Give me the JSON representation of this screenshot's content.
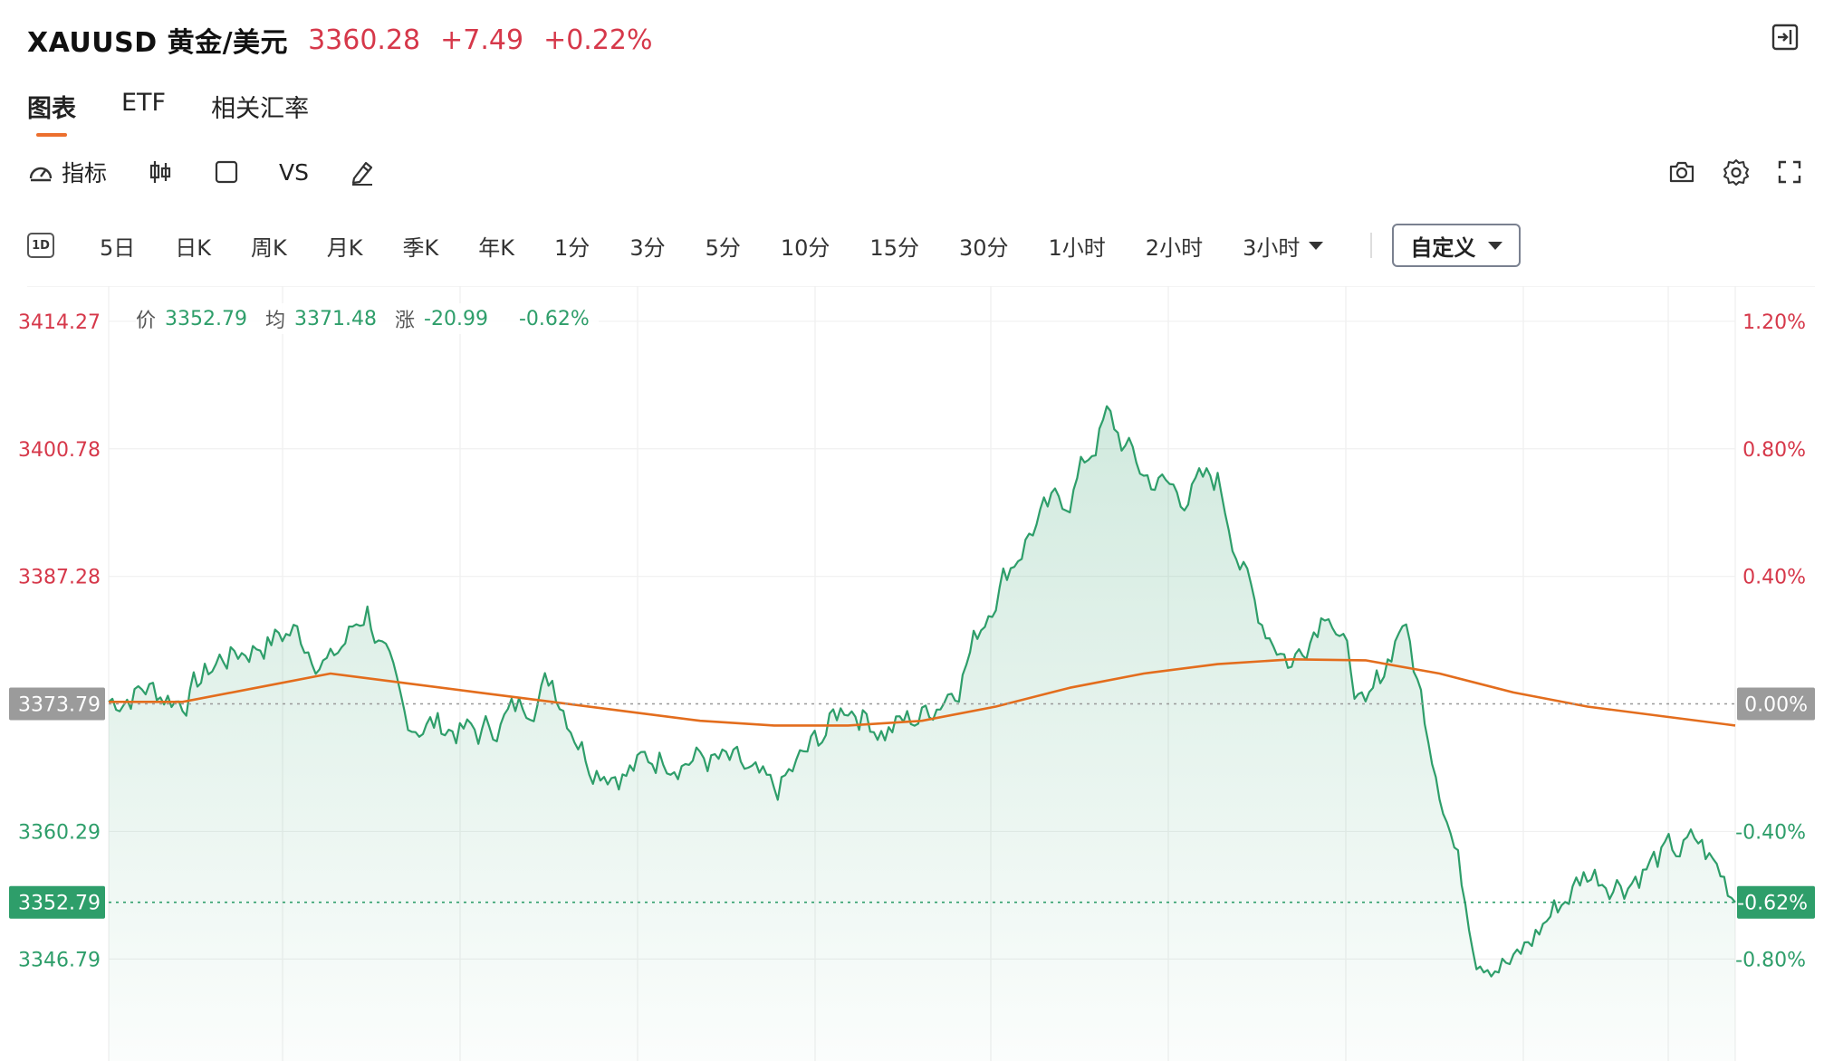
{
  "header": {
    "symbol": "XAUUSD 黄金/美元",
    "price": "3360.28",
    "change": "+7.49",
    "change_pct": "+0.22%"
  },
  "tabs": [
    {
      "label": "图表",
      "active": true
    },
    {
      "label": "ETF",
      "active": false
    },
    {
      "label": "相关汇率",
      "active": false
    }
  ],
  "toolbar": {
    "indicator_label": "指标",
    "vs_label": "VS"
  },
  "periods": {
    "first_icon_label": "1D",
    "items": [
      "5日",
      "日K",
      "周K",
      "月K",
      "季K",
      "年K",
      "1分",
      "3分",
      "5分",
      "10分",
      "15分",
      "30分",
      "1小时",
      "2小时"
    ],
    "more_label": "3小时",
    "custom_label": "自定义"
  },
  "info": {
    "price_key": "价",
    "price_val": "3352.79",
    "avg_key": "均",
    "avg_val": "3371.48",
    "chg_key": "涨",
    "chg_val": "-20.99",
    "pct_val": "-0.62%"
  },
  "colors": {
    "up": "#d6384a",
    "down": "#2e9e6a",
    "avg_line": "#e36d1d",
    "ref_label_bg": "#9b9b9b",
    "cur_label_bg": "#2e9e6a"
  },
  "chart_data": {
    "type": "area",
    "prev_close": 3373.79,
    "current": 3352.79,
    "ylim": [
      3336.0,
      3418.0
    ],
    "y_ticks": [
      3414.27,
      3400.78,
      3387.28,
      3360.29,
      3346.79
    ],
    "y_ticks_pct": [
      "1.20%",
      "0.80%",
      "0.40%",
      "-0.40%",
      "-0.80%"
    ],
    "ref_label": "3373.79",
    "ref_pct": "0.00%",
    "cur_label": "3352.79",
    "cur_pct": "-0.62%",
    "points_total": 440,
    "price_series": {
      "x": [
        0,
        10,
        20,
        30,
        40,
        50,
        60,
        70,
        80,
        90,
        100,
        110,
        120,
        130,
        140,
        150,
        160,
        170,
        180,
        190,
        200,
        210,
        220,
        230,
        240,
        250,
        260,
        270,
        280,
        290,
        300,
        310,
        320,
        330,
        340,
        350,
        360,
        370,
        380,
        390,
        400,
        410,
        420,
        430,
        440
      ],
      "y": [
        3374.0,
        3375.5,
        3374.2,
        3378.5,
        3380.0,
        3381.5,
        3378.0,
        3384.0,
        3372.0,
        3371.5,
        3370.5,
        3373.0,
        3376.5,
        3368.0,
        3366.5,
        3368.5,
        3368.0,
        3367.0,
        3364.0,
        3369.0,
        3374.0,
        3371.0,
        3372.5,
        3376.5,
        3386.0,
        3392.5,
        3396.0,
        3404.0,
        3398.0,
        3396.0,
        3397.5,
        3384.0,
        3378.0,
        3385.0,
        3372.0,
        3383.0,
        3366.0,
        3348.0,
        3346.0,
        3351.5,
        3356.0,
        3355.0,
        3357.5,
        3359.0,
        3353.5
      ]
    },
    "avg_series": {
      "x": [
        0,
        20,
        40,
        60,
        80,
        100,
        120,
        140,
        160,
        180,
        200,
        220,
        240,
        260,
        280,
        300,
        320,
        340,
        360,
        380,
        400,
        420,
        440
      ],
      "y": [
        3374.0,
        3374.0,
        3375.5,
        3377.0,
        3376.0,
        3375.0,
        3374.0,
        3373.0,
        3372.0,
        3371.5,
        3371.5,
        3372.0,
        3373.5,
        3375.5,
        3377.0,
        3378.0,
        3378.5,
        3378.4,
        3377.0,
        3375.0,
        3373.5,
        3372.5,
        3371.5
      ]
    }
  }
}
